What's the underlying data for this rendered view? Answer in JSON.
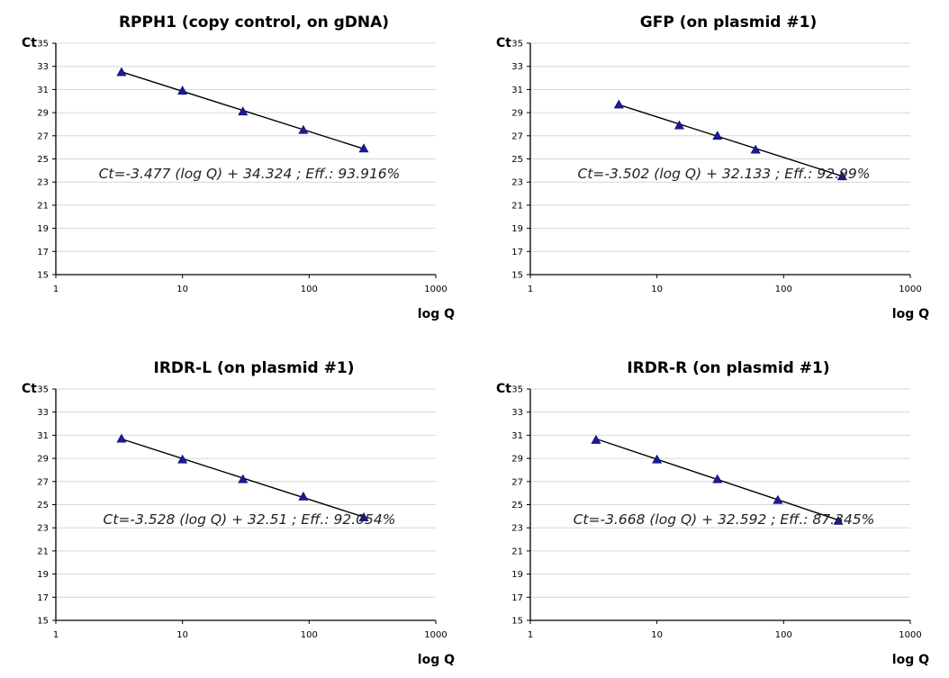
{
  "chart_data": [
    {
      "type": "scatter",
      "title": "RPPH1 (copy control, on gDNA)",
      "xlabel": "log Q",
      "ylabel": "Ct",
      "x_scale": "log",
      "xlim": [
        1,
        1000
      ],
      "ylim": [
        15,
        35
      ],
      "x_ticks": [
        "1",
        "10",
        "100",
        "1000"
      ],
      "y_ticks": [
        "15",
        "17",
        "19",
        "21",
        "23",
        "25",
        "27",
        "29",
        "31",
        "33",
        "35"
      ],
      "grid": true,
      "marker": "triangle",
      "marker_color": "#1a1a9a",
      "x": [
        3.3,
        10,
        30,
        90,
        270
      ],
      "y": [
        32.5,
        30.9,
        29.1,
        27.5,
        25.9
      ],
      "trendline": {
        "slope": -3.477,
        "intercept": 34.324
      },
      "annotation": "Ct=-3.477 (log Q) + 34.324 ; Eff.: 93.916%"
    },
    {
      "type": "scatter",
      "title": "GFP (on plasmid #1)",
      "xlabel": "log Q",
      "ylabel": "Ct",
      "x_scale": "log",
      "xlim": [
        1,
        1000
      ],
      "ylim": [
        15,
        35
      ],
      "x_ticks": [
        "1",
        "10",
        "100",
        "1000"
      ],
      "y_ticks": [
        "15",
        "17",
        "19",
        "21",
        "23",
        "25",
        "27",
        "29",
        "31",
        "33",
        "35"
      ],
      "grid": true,
      "marker": "triangle",
      "marker_color": "#1a1a9a",
      "x": [
        5,
        15,
        30,
        60,
        290
      ],
      "y": [
        29.7,
        27.9,
        27.0,
        25.8,
        23.5
      ],
      "trendline": {
        "slope": -3.502,
        "intercept": 32.133
      },
      "annotation": "Ct=-3.502 (log Q) + 32.133 ; Eff.: 92.99%"
    },
    {
      "type": "scatter",
      "title": "IRDR-L (on plasmid #1)",
      "xlabel": "log Q",
      "ylabel": "Ct",
      "x_scale": "log",
      "xlim": [
        1,
        1000
      ],
      "ylim": [
        15,
        35
      ],
      "x_ticks": [
        "1",
        "10",
        "100",
        "1000"
      ],
      "y_ticks": [
        "15",
        "17",
        "19",
        "21",
        "23",
        "25",
        "27",
        "29",
        "31",
        "33",
        "35"
      ],
      "grid": true,
      "marker": "triangle",
      "marker_color": "#1a1a9a",
      "x": [
        3.3,
        10,
        30,
        90,
        270
      ],
      "y": [
        30.7,
        28.9,
        27.2,
        25.7,
        23.9
      ],
      "trendline": {
        "slope": -3.528,
        "intercept": 32.51
      },
      "annotation": "Ct=-3.528 (log Q) + 32.51 ; Eff.: 92.054%"
    },
    {
      "type": "scatter",
      "title": "IRDR-R (on plasmid #1)",
      "xlabel": "log Q",
      "ylabel": "Ct",
      "x_scale": "log",
      "xlim": [
        1,
        1000
      ],
      "ylim": [
        15,
        35
      ],
      "x_ticks": [
        "1",
        "10",
        "100",
        "1000"
      ],
      "y_ticks": [
        "15",
        "17",
        "19",
        "21",
        "23",
        "25",
        "27",
        "29",
        "31",
        "33",
        "35"
      ],
      "grid": true,
      "marker": "triangle",
      "marker_color": "#1a1a9a",
      "x": [
        3.3,
        10,
        30,
        90,
        270
      ],
      "y": [
        30.6,
        28.9,
        27.2,
        25.4,
        23.6
      ],
      "trendline": {
        "slope": -3.668,
        "intercept": 32.592
      },
      "annotation": "Ct=-3.668 (log Q) + 32.592 ; Eff.: 87.345%"
    }
  ]
}
